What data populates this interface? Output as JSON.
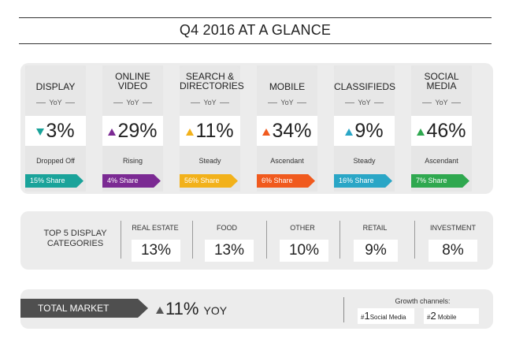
{
  "title": "Q4 2016 AT A GLANCE",
  "cards": [
    {
      "label_1": "DISPLAY",
      "label_2": "",
      "yoy": "YoY",
      "value": "3%",
      "direction": "down",
      "arrow_color": "#1aa39a",
      "status": "Dropped Off",
      "share": "15% Share",
      "share_color": "#1aa39a"
    },
    {
      "label_1": "ONLINE",
      "label_2": "VIDEO",
      "yoy": "YoY",
      "value": "29%",
      "direction": "up",
      "arrow_color": "#7b2a93",
      "status": "Rising",
      "share": "4% Share",
      "share_color": "#7b2a93"
    },
    {
      "label_1": "SEARCH &",
      "label_2": "DIRECTORIES",
      "yoy": "YoY",
      "value": "11%",
      "direction": "up",
      "arrow_color": "#f2b11a",
      "status": "Steady",
      "share": "56% Share",
      "share_color": "#f2b11a"
    },
    {
      "label_1": "MOBILE",
      "label_2": "",
      "yoy": "YoY",
      "value": "34%",
      "direction": "up",
      "arrow_color": "#f05a1e",
      "status": "Ascendant",
      "share": "6% Share",
      "share_color": "#f05a1e"
    },
    {
      "label_1": "CLASSIFIEDS",
      "label_2": "",
      "yoy": "YoY",
      "value": "9%",
      "direction": "up",
      "arrow_color": "#2aa6c6",
      "status": "Steady",
      "share": "16% Share",
      "share_color": "#2aa6c6"
    },
    {
      "label_1": "SOCIAL",
      "label_2": "MEDIA",
      "yoy": "YoY",
      "value": "46%",
      "direction": "up",
      "arrow_color": "#2fa84f",
      "status": "Ascendant",
      "share": "7% Share",
      "share_color": "#2fa84f"
    }
  ],
  "categories": {
    "title_1": "TOP 5 DISPLAY",
    "title_2": "CATEGORIES",
    "items": [
      {
        "label": "REAL ESTATE",
        "value": "13%"
      },
      {
        "label": "FOOD",
        "value": "13%"
      },
      {
        "label": "OTHER",
        "value": "10%"
      },
      {
        "label": "RETAIL",
        "value": "9%"
      },
      {
        "label": "INVESTMENT",
        "value": "8%"
      }
    ]
  },
  "total": {
    "label": "TOTAL MARKET",
    "value": "11%",
    "unit": "YOY",
    "growth_title": "Growth channels:",
    "channels": [
      {
        "rank": "#",
        "rank_num": "1",
        "name": "Social Media"
      },
      {
        "rank": "#",
        "rank_num": "2",
        "name": "Mobile"
      }
    ]
  }
}
